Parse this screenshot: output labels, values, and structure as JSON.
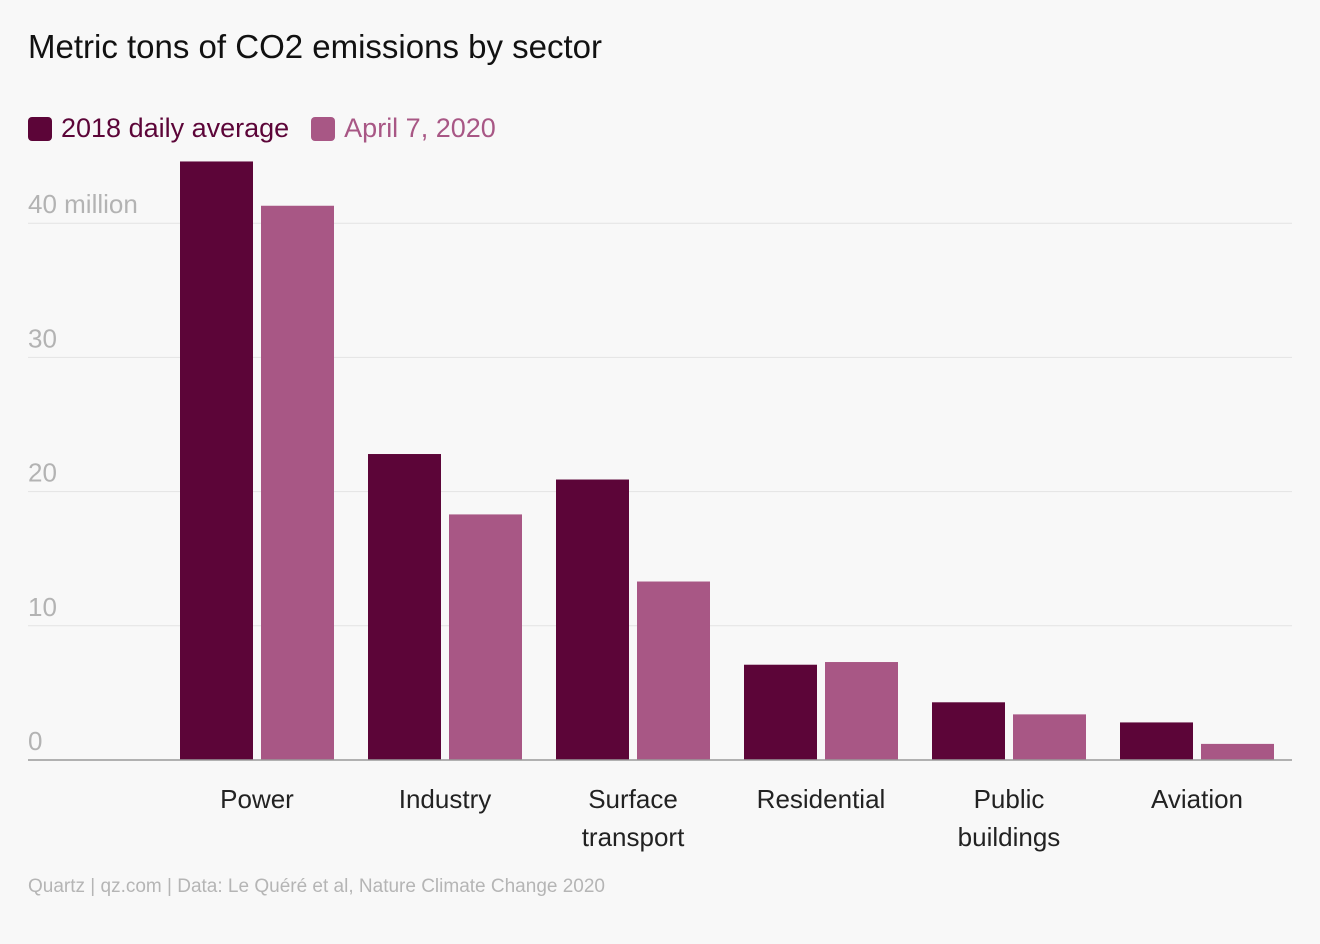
{
  "chart_data": {
    "type": "bar",
    "title": "Metric tons of CO2 emissions by sector",
    "categories": [
      [
        "Power"
      ],
      [
        "Industry"
      ],
      [
        "Surface",
        "transport"
      ],
      [
        "Residential"
      ],
      [
        "Public",
        "buildings"
      ],
      [
        "Aviation"
      ]
    ],
    "series": [
      {
        "name": "2018 daily average",
        "color": "#5c0538",
        "values": [
          44.6,
          22.8,
          20.9,
          7.1,
          4.3,
          2.8
        ]
      },
      {
        "name": "April 7, 2020",
        "color": "#a85785",
        "values": [
          41.3,
          18.3,
          13.3,
          7.3,
          3.4,
          1.2
        ]
      }
    ],
    "yticks": [
      {
        "value": 0,
        "label": "0"
      },
      {
        "value": 10,
        "label": "10"
      },
      {
        "value": 20,
        "label": "20"
      },
      {
        "value": 30,
        "label": "30"
      },
      {
        "value": 40,
        "label": "40 million"
      }
    ],
    "ylim": [
      0,
      45
    ],
    "grid": true,
    "legend_position": "top-left",
    "xlabel": "",
    "ylabel": "",
    "source": "Quartz | qz.com | Data: Le Quéré et al, Nature Climate Change 2020"
  }
}
